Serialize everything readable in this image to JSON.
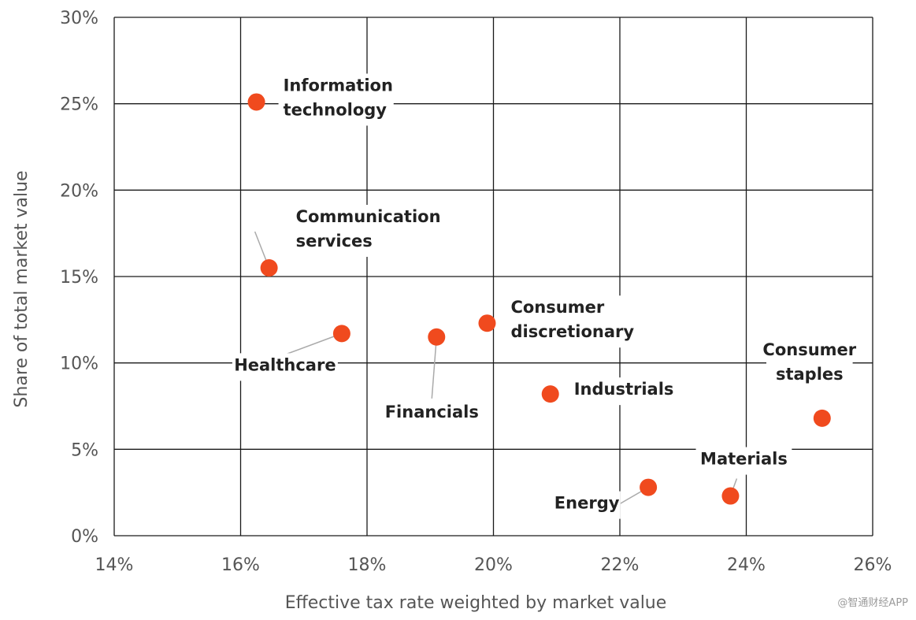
{
  "chart_data": {
    "type": "scatter",
    "title": "",
    "xlabel": "Effective tax rate weighted by market value",
    "ylabel": "Share of total market value",
    "xlim": [
      14,
      26
    ],
    "ylim": [
      0,
      30
    ],
    "xticks": [
      14,
      16,
      18,
      20,
      22,
      24,
      26
    ],
    "yticks": [
      0,
      5,
      10,
      15,
      20,
      25,
      30
    ],
    "xtick_labels": [
      "14%",
      "16%",
      "18%",
      "20%",
      "22%",
      "24%",
      "26%"
    ],
    "ytick_labels": [
      "0%",
      "5%",
      "10%",
      "15%",
      "20%",
      "25%",
      "30%"
    ],
    "grid": true,
    "marker_color": "#f04a1e",
    "points": [
      {
        "name": "Information technology",
        "lines": [
          "Information",
          "technology"
        ],
        "x": 16.25,
        "y": 25.1
      },
      {
        "name": "Communication services",
        "lines": [
          "Communication",
          "services"
        ],
        "x": 16.45,
        "y": 15.5
      },
      {
        "name": "Healthcare",
        "lines": [
          "Healthcare"
        ],
        "x": 17.6,
        "y": 11.7
      },
      {
        "name": "Financials",
        "lines": [
          "Financials"
        ],
        "x": 19.1,
        "y": 11.5
      },
      {
        "name": "Consumer discretionary",
        "lines": [
          "Consumer",
          "discretionary"
        ],
        "x": 19.9,
        "y": 12.3
      },
      {
        "name": "Industrials",
        "lines": [
          "Industrials"
        ],
        "x": 20.9,
        "y": 8.2
      },
      {
        "name": "Consumer staples",
        "lines": [
          "Consumer",
          "staples"
        ],
        "x": 25.2,
        "y": 6.8
      },
      {
        "name": "Energy",
        "lines": [
          "Energy"
        ],
        "x": 22.45,
        "y": 2.8
      },
      {
        "name": "Materials",
        "lines": [
          "Materials"
        ],
        "x": 23.75,
        "y": 2.3
      }
    ]
  },
  "watermark": "@智通财经APP"
}
